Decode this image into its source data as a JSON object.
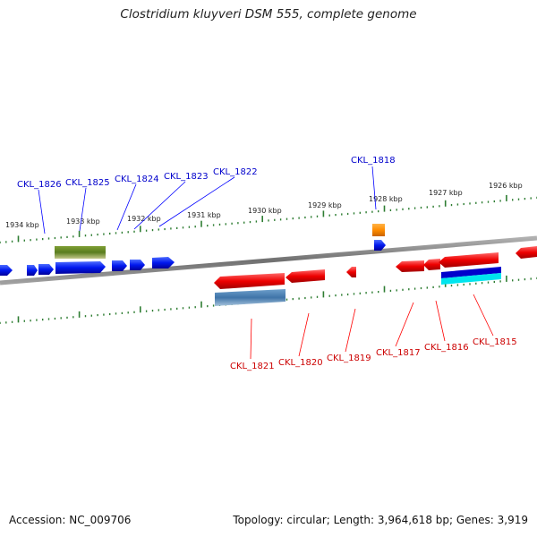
{
  "title": "Clostridium kluyveri DSM 555, complete genome",
  "footer": {
    "accession": "Accession: NC_009706",
    "summary": "Topology: circular; Length: 3,964,618 bp; Genes: 3,919"
  },
  "colors": {
    "backbone": "#888888",
    "forward_gene": "#0000ff",
    "reverse_gene": "#ff0000",
    "tick": "#2e7d32",
    "olive_feature": "#6b8e23",
    "orange_feature": "#ff8c00",
    "steelblue_feature": "#4682b4",
    "cyan_feature": "#00e5ee",
    "forward_label": "#0000cc",
    "reverse_label": "#cc0000"
  },
  "tick_labels": [
    "1934 kbp",
    "1933 kbp",
    "1932 kbp",
    "1931 kbp",
    "1930 kbp",
    "1929 kbp",
    "1928 kbp",
    "1927 kbp",
    "1926 kbp"
  ],
  "forward_gene_labels": [
    "CKL_1826",
    "CKL_1825",
    "CKL_1824",
    "CKL_1823",
    "CKL_1822",
    "CKL_1818"
  ],
  "reverse_gene_labels": [
    "CKL_1821",
    "CKL_1820",
    "CKL_1819",
    "CKL_1817",
    "CKL_1816",
    "CKL_1815"
  ]
}
